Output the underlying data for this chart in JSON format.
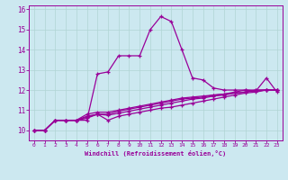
{
  "background_color": "#cce8f0",
  "grid_color": "#b0d4d4",
  "line_color": "#990099",
  "xlabel": "Windchill (Refroidissement éolien,°C)",
  "xlim": [
    -0.5,
    23.5
  ],
  "ylim": [
    9.5,
    16.2
  ],
  "yticks": [
    10,
    11,
    12,
    13,
    14,
    15,
    16
  ],
  "xticks": [
    0,
    1,
    2,
    3,
    4,
    5,
    6,
    7,
    8,
    9,
    10,
    11,
    12,
    13,
    14,
    15,
    16,
    17,
    18,
    19,
    20,
    21,
    22,
    23
  ],
  "hours": [
    0,
    1,
    2,
    3,
    4,
    5,
    6,
    7,
    8,
    9,
    10,
    11,
    12,
    13,
    14,
    15,
    16,
    17,
    18,
    19,
    20,
    21,
    22,
    23
  ],
  "curve_main": [
    10.0,
    10.0,
    10.5,
    10.5,
    10.5,
    10.5,
    12.8,
    12.9,
    13.7,
    13.7,
    13.7,
    15.0,
    15.65,
    15.4,
    14.0,
    12.6,
    12.5,
    12.1,
    12.0,
    12.0,
    12.0,
    11.95,
    12.6,
    11.9
  ],
  "curve_a": [
    10.0,
    10.0,
    10.5,
    10.5,
    10.5,
    10.6,
    10.8,
    10.5,
    10.7,
    10.8,
    10.9,
    11.0,
    11.1,
    11.15,
    11.25,
    11.35,
    11.45,
    11.55,
    11.65,
    11.75,
    11.85,
    11.9,
    12.0,
    12.0
  ],
  "curve_b": [
    10.0,
    10.0,
    10.5,
    10.5,
    10.5,
    10.65,
    10.8,
    10.75,
    10.85,
    10.95,
    11.05,
    11.15,
    11.25,
    11.35,
    11.45,
    11.55,
    11.6,
    11.7,
    11.75,
    11.85,
    11.9,
    11.95,
    12.0,
    12.0
  ],
  "curve_c": [
    10.0,
    10.0,
    10.5,
    10.5,
    10.5,
    10.7,
    10.8,
    10.8,
    10.95,
    11.05,
    11.15,
    11.25,
    11.35,
    11.45,
    11.55,
    11.6,
    11.65,
    11.75,
    11.8,
    11.85,
    11.9,
    12.0,
    12.0,
    12.0
  ],
  "curve_d": [
    10.0,
    10.0,
    10.5,
    10.5,
    10.5,
    10.8,
    10.9,
    10.9,
    11.0,
    11.1,
    11.2,
    11.3,
    11.4,
    11.5,
    11.6,
    11.65,
    11.7,
    11.75,
    11.8,
    11.9,
    12.0,
    12.0,
    12.0,
    12.0
  ]
}
